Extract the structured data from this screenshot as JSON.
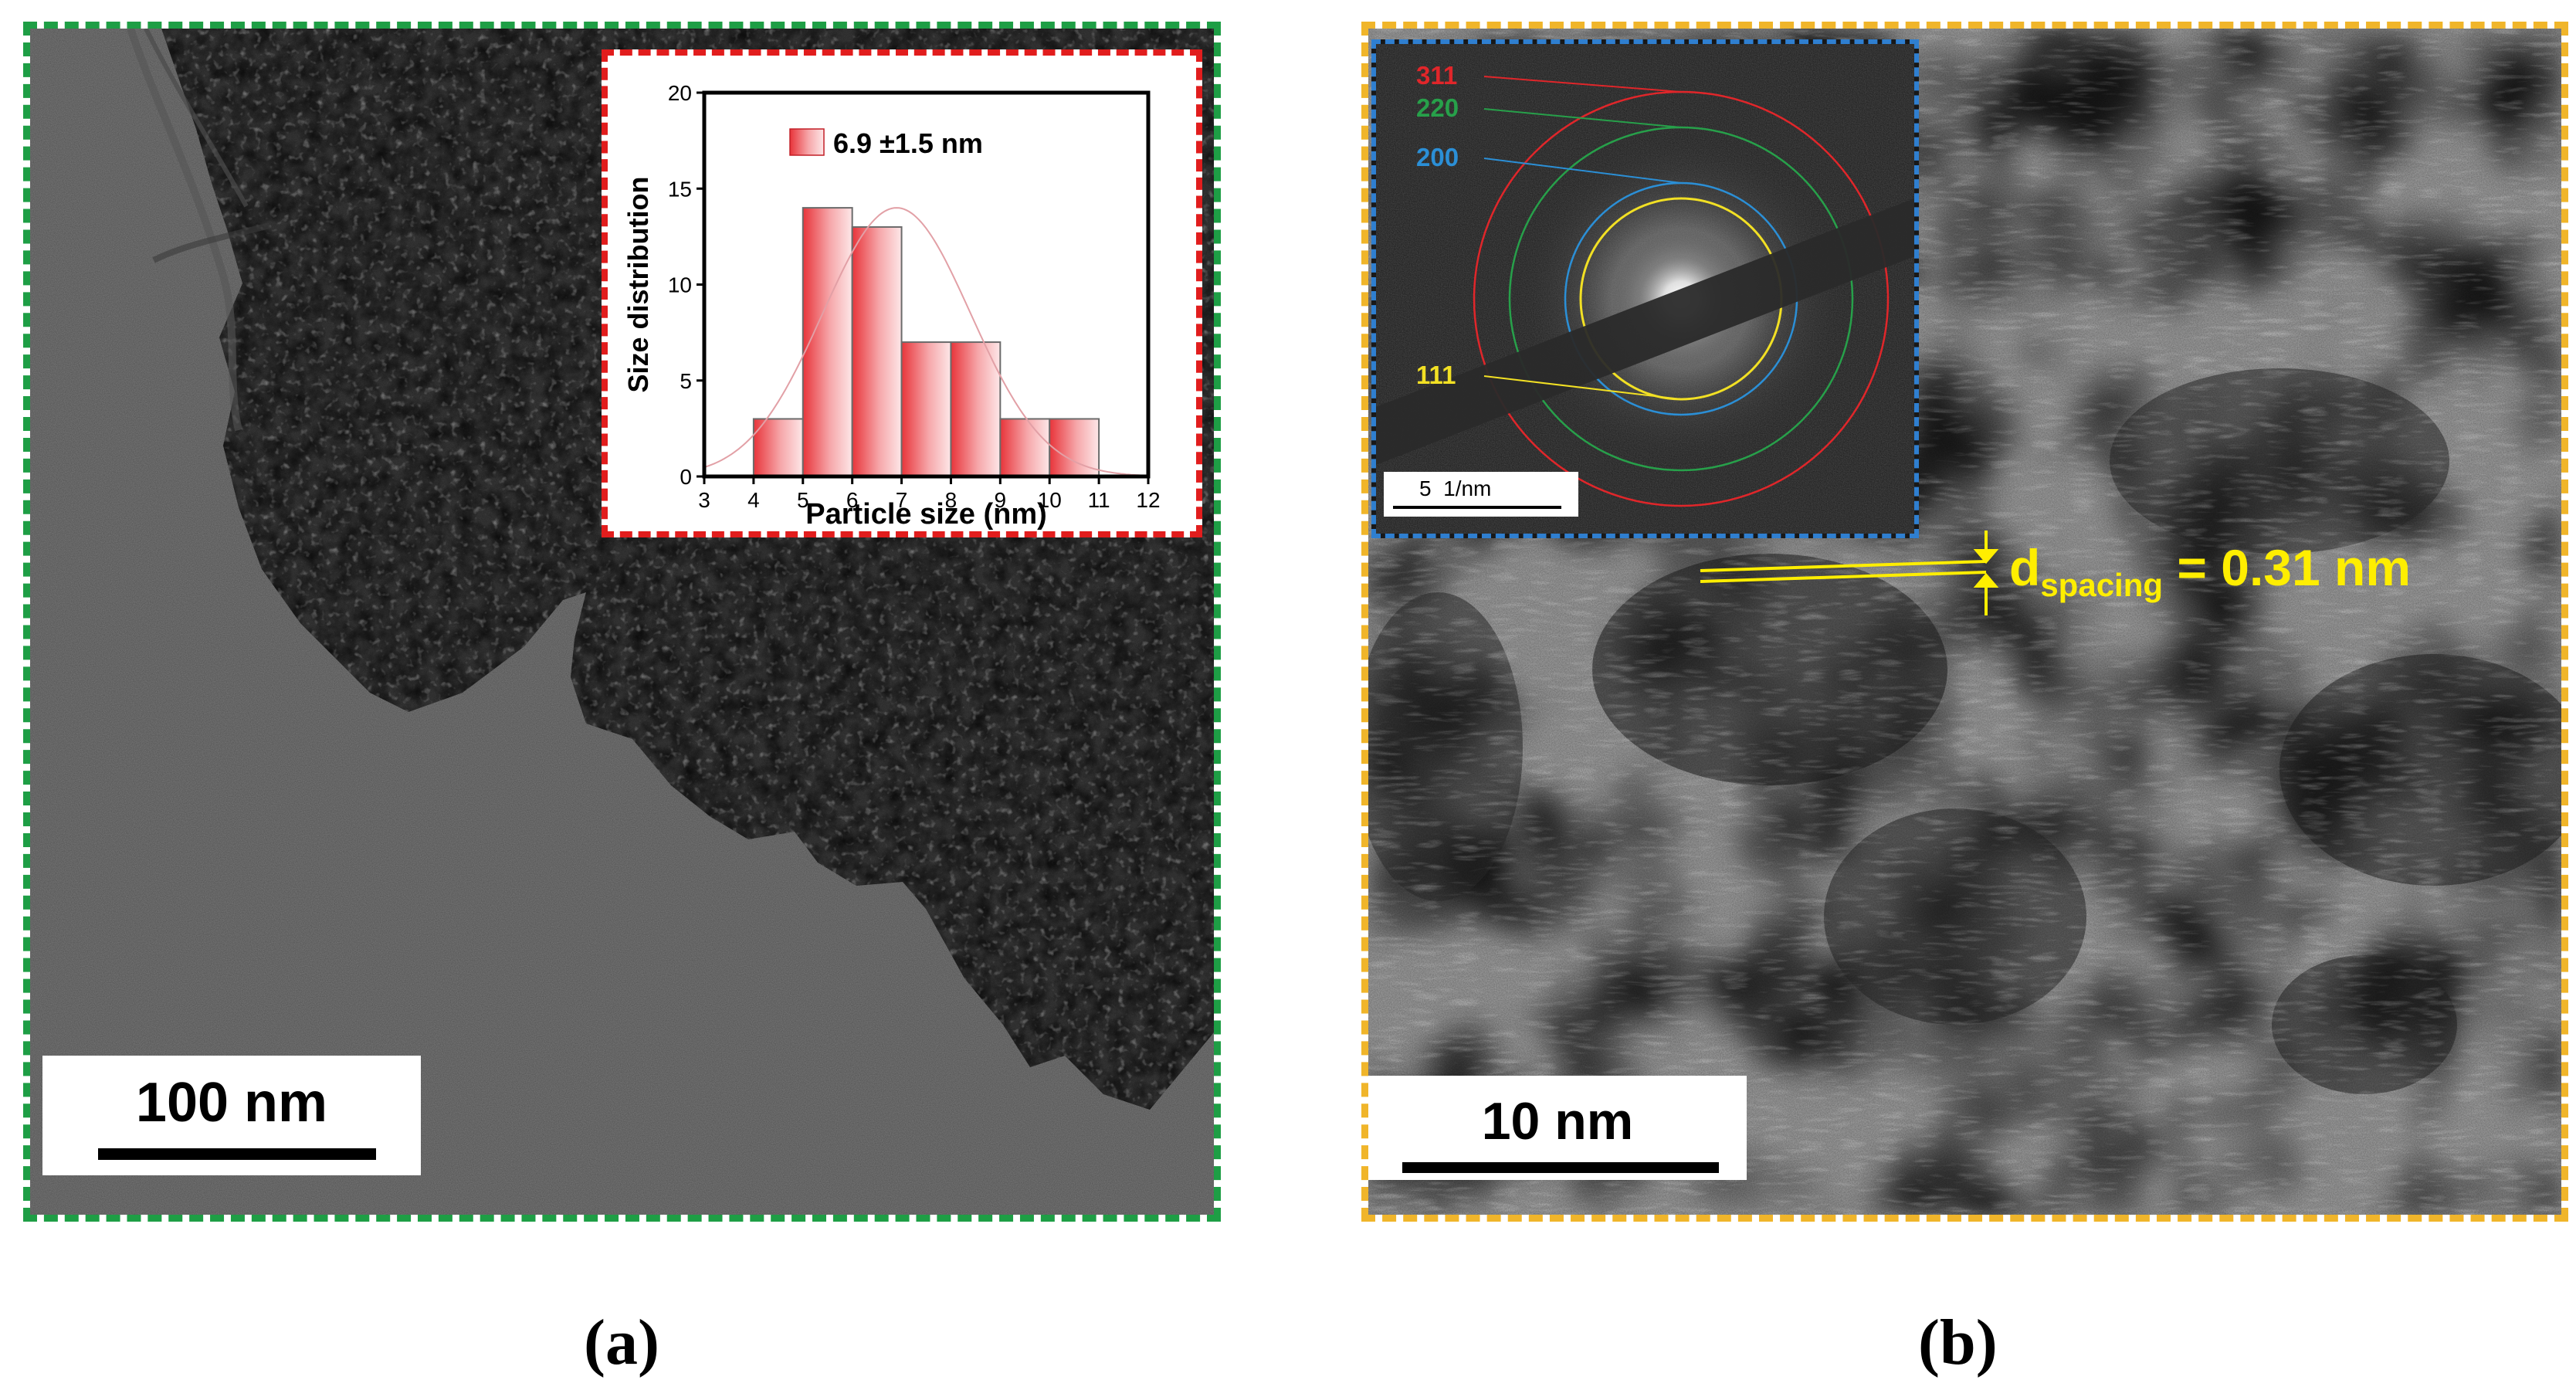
{
  "panel_a": {
    "scale_bar_label": "100 nm",
    "caption": "(a)",
    "histogram": {
      "legend_label": "6.9 ±1.5 nm",
      "xlabel": "Particle size (nm)",
      "ylabel": "Size distribution",
      "x_ticks": [
        "3",
        "4",
        "5",
        "6",
        "7",
        "8",
        "9",
        "10",
        "11",
        "12"
      ],
      "y_ticks": [
        "0",
        "5",
        "10",
        "15",
        "20"
      ],
      "bar_color": "#e8343a"
    }
  },
  "chart_data": {
    "type": "bar",
    "x": [
      4.5,
      5.5,
      6.5,
      7.5,
      8.5,
      9.5,
      10.5
    ],
    "values": [
      3,
      14,
      13,
      7,
      7,
      3,
      3
    ],
    "xlabel": "Particle size (nm)",
    "ylabel": "Size distribution",
    "xlim": [
      3,
      12
    ],
    "ylim": [
      0,
      20
    ],
    "fit": {
      "mean": 6.9,
      "sd": 1.5
    },
    "legend": "6.9 ±1.5 nm",
    "grid": false
  },
  "panel_b": {
    "scale_bar_label": "10 nm",
    "caption": "(b)",
    "d_label": "d",
    "d_subscript": "spacing",
    "d_value": " = 0.31 nm",
    "annotation_color": "#ffee00",
    "saed": {
      "scale_label": "5  1/nm",
      "rings": [
        {
          "label": "311",
          "color": "#e0262a"
        },
        {
          "label": "220",
          "color": "#27a04a"
        },
        {
          "label": "200",
          "color": "#2b8fd6"
        },
        {
          "label": "111",
          "color": "#f2e024"
        }
      ]
    }
  },
  "colors": {
    "panel_a_border": "#1e9e45",
    "panel_b_border": "#f0b52a",
    "histogram_border": "#e11d1d",
    "saed_border": "#2f7fd0"
  }
}
